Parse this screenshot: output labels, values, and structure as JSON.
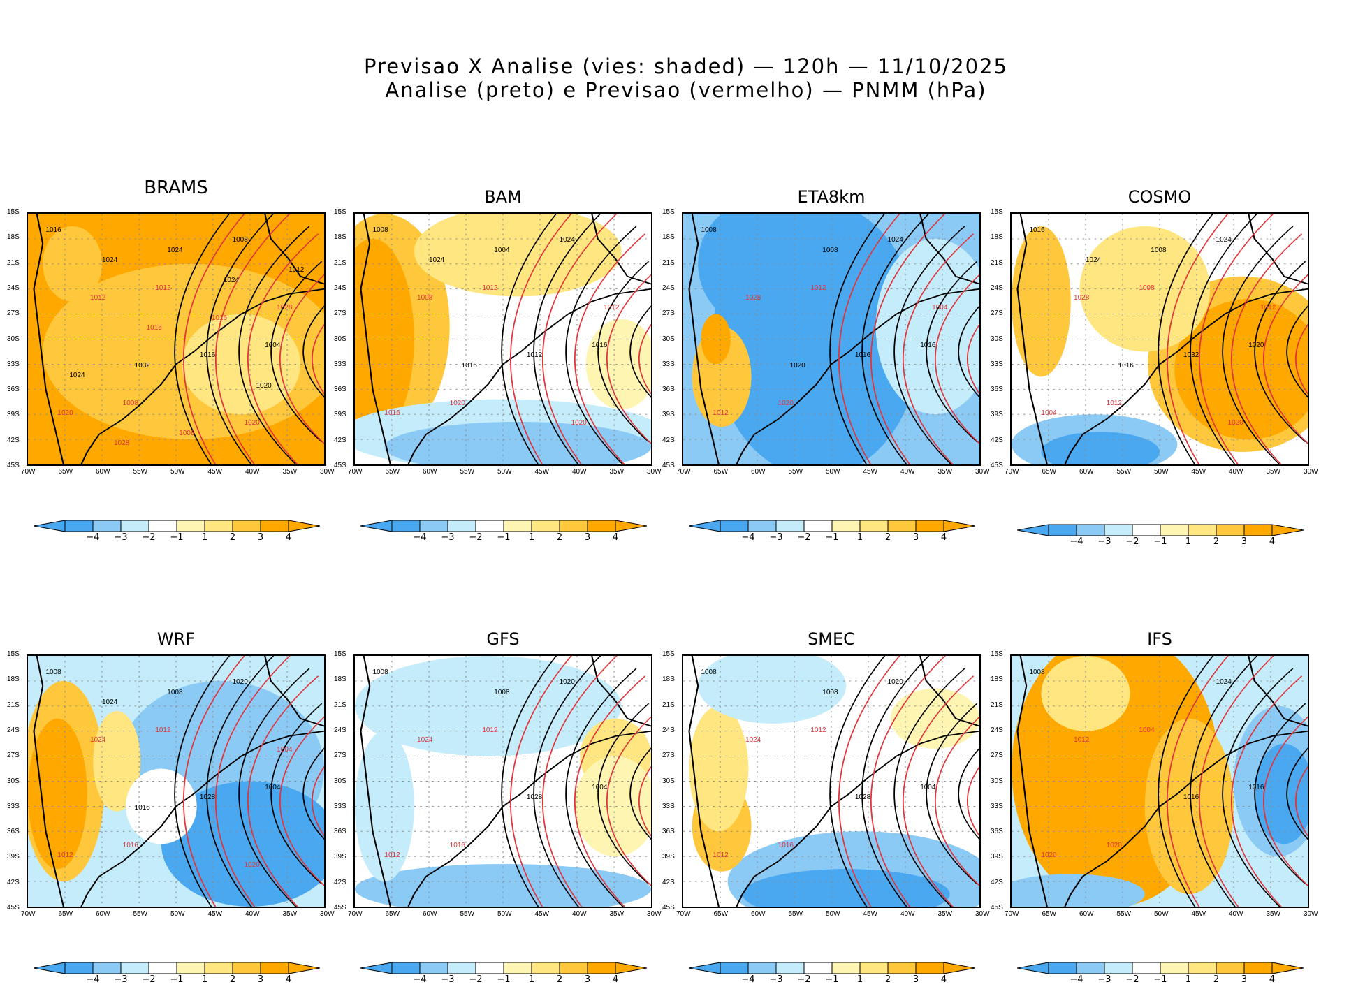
{
  "figure": {
    "title_line1": "Previsao X Analise (vies: shaded) — 120h — 11/10/2025",
    "title_line2": "Analise (preto) e Previsao (vermelho) — PNMM (hPa)"
  },
  "colors": {
    "c_m4": "#4aa8f0",
    "c_m3": "#8ccaf6",
    "c_m2": "#c4ecfb",
    "c_m1": "#ffffff",
    "c_p1": "#fff5b2",
    "c_p2": "#ffe680",
    "c_p3": "#ffc83c",
    "c_p4": "#ffa800",
    "analysis_contour": "#000000",
    "forecast_contour": "#e0343a"
  },
  "chart_data": {
    "type": "heatmap",
    "x_ticks": [
      "70W",
      "65W",
      "60W",
      "55W",
      "50W",
      "45W",
      "40W",
      "35W",
      "30W"
    ],
    "y_ticks": [
      "15S",
      "18S",
      "21S",
      "24S",
      "27S",
      "30S",
      "33S",
      "36S",
      "39S",
      "42S",
      "45S"
    ],
    "colorbar_ticks": [
      "-4",
      "-3",
      "-2",
      "-1",
      "1",
      "2",
      "3",
      "4"
    ],
    "panels": [
      {
        "name": "BRAMS",
        "bias": "positive-strong",
        "contour_labels": [
          "1016",
          "1012",
          "1004",
          "1008",
          "1008",
          "1012",
          "1016",
          "1020",
          "1024",
          "1028",
          "1032",
          "1020",
          "1024",
          "1016",
          "1024",
          "1008",
          "1012",
          "1016",
          "1020",
          "1028",
          "1024"
        ]
      },
      {
        "name": "BAM",
        "bias": "positive-west",
        "contour_labels": [
          "1008",
          "1012",
          "1016",
          "1020",
          "1024",
          "1008",
          "1012",
          "1016",
          "1004",
          "1012",
          "1016",
          "1020",
          "1024"
        ]
      },
      {
        "name": "ETA8km",
        "bias": "negative",
        "contour_labels": [
          "1008",
          "1012",
          "1016",
          "1020",
          "1024",
          "1028",
          "1016",
          "1012",
          "1008",
          "1004",
          "1020"
        ]
      },
      {
        "name": "COSMO",
        "bias": "positive-east",
        "contour_labels": [
          "1016",
          "1008",
          "1020",
          "1012",
          "1024",
          "1028",
          "1032",
          "1004",
          "1008",
          "1012",
          "1016",
          "1020",
          "1024"
        ]
      },
      {
        "name": "WRF",
        "bias": "mixed",
        "contour_labels": [
          "1008",
          "1012",
          "1004",
          "1016",
          "1020",
          "1024",
          "1028",
          "1012",
          "1008",
          "1004",
          "1016",
          "1020",
          "1024"
        ]
      },
      {
        "name": "GFS",
        "bias": "weak",
        "contour_labels": [
          "1008",
          "1012",
          "1004",
          "1016",
          "1020",
          "1024",
          "1028",
          "1012",
          "1008"
        ]
      },
      {
        "name": "SMEC",
        "bias": "mixed-negative",
        "contour_labels": [
          "1008",
          "1012",
          "1004",
          "1016",
          "1020",
          "1024",
          "1028",
          "1012",
          "1008"
        ]
      },
      {
        "name": "IFS",
        "bias": "positive-central",
        "contour_labels": [
          "1008",
          "1004",
          "1016",
          "1020",
          "1024",
          "1012",
          "1016",
          "1020"
        ]
      }
    ]
  }
}
